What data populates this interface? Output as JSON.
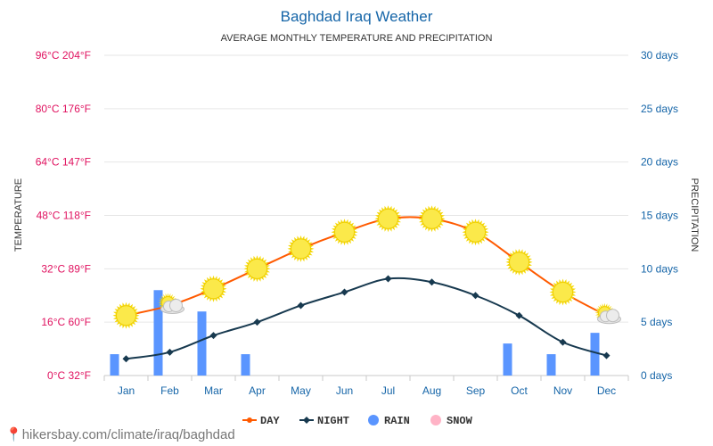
{
  "chart_data": {
    "type": "line",
    "title": "Baghdad Iraq Weather",
    "subtitle": "AVERAGE MONTHLY TEMPERATURE AND PRECIPITATION",
    "ylabel_left": "TEMPERATURE",
    "ylabel_right": "PRECIPITATION",
    "categories": [
      "Jan",
      "Feb",
      "Mar",
      "Apr",
      "May",
      "Jun",
      "Jul",
      "Aug",
      "Sep",
      "Oct",
      "Nov",
      "Dec"
    ],
    "y_left_ticks": [
      "0°C 32°F",
      "16°C 60°F",
      "32°C 89°F",
      "48°C 118°F",
      "64°C 147°F",
      "80°C 176°F",
      "96°C 204°F"
    ],
    "y_left_range": [
      0,
      96
    ],
    "y_right_ticks": [
      "0 days",
      "5 days",
      "10 days",
      "15 days",
      "20 days",
      "25 days",
      "30 days"
    ],
    "y_right_range": [
      0,
      30
    ],
    "series": [
      {
        "name": "DAY",
        "unit": "°C",
        "color": "#ff5a00",
        "values": [
          18,
          21,
          26,
          32,
          38,
          43,
          47,
          47,
          43,
          34,
          25,
          18
        ]
      },
      {
        "name": "NIGHT",
        "unit": "°C",
        "color": "#17394f",
        "values": [
          5,
          7,
          12,
          16,
          21,
          25,
          29,
          28,
          24,
          18,
          10,
          6
        ]
      },
      {
        "name": "RAIN",
        "unit": "days",
        "color": "#5a95ff",
        "values": [
          2,
          8,
          6,
          2,
          0,
          0,
          0,
          0,
          0,
          3,
          2,
          4
        ]
      },
      {
        "name": "SNOW",
        "unit": "days",
        "color": "#ffb3c6",
        "values": [
          0,
          0,
          0,
          0,
          0,
          0,
          0,
          0,
          0,
          0,
          0,
          0
        ]
      }
    ],
    "weather_icons": [
      "sun",
      "sun-cloud",
      "sun",
      "sun",
      "sun",
      "sun",
      "sun",
      "sun",
      "sun",
      "sun",
      "sun",
      "sun-cloud"
    ],
    "legend_position": "bottom-center",
    "grid": true
  },
  "colors": {
    "title": "#1565a8",
    "left_axis": "#e0115f",
    "right_axis": "#1565a8",
    "month_labels": "#1565a8",
    "axis_title": "#333333"
  },
  "watermark": "hikersbay.com/climate/iraq/baghdad"
}
